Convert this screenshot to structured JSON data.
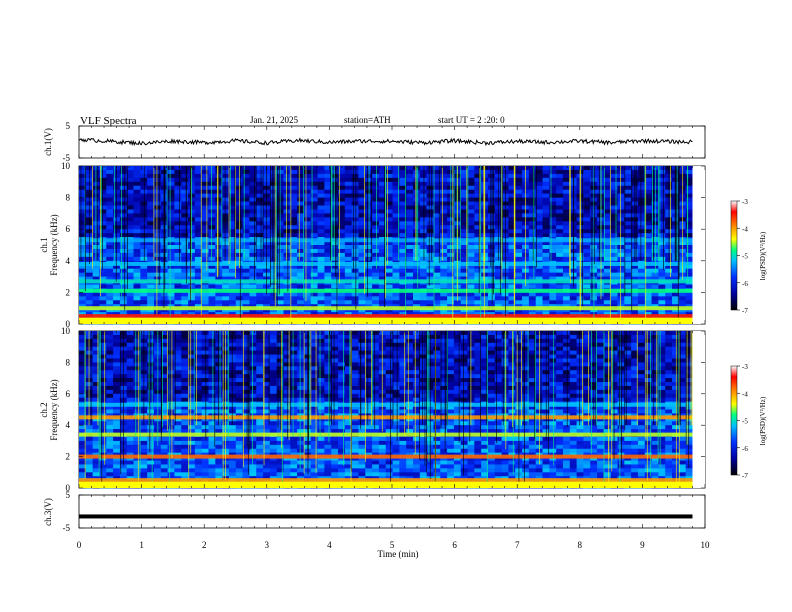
{
  "header": {
    "title": "VLF  Spectra",
    "date": "Jan. 21, 2025",
    "station": "station=ATH",
    "start": "start  UT  =   2  :20: 0"
  },
  "colors": {
    "ink": "#000000",
    "colormap": [
      "#000000",
      "#0000a0",
      "#0030ff",
      "#00c0ff",
      "#00ff80",
      "#ffff00",
      "#ff8000",
      "#ff0000",
      "#ffffff"
    ]
  },
  "chart_data": [
    {
      "type": "line",
      "id": "ch1",
      "ylabel": "ch.1(V)",
      "ylim": [
        -5,
        5
      ],
      "yticks": [
        "5",
        "-5"
      ],
      "xlim": [
        0,
        10
      ],
      "description_values": {
        "x": [
          0,
          0.5,
          1,
          1.5,
          2,
          2.5,
          3,
          3.5,
          4,
          4.5,
          5,
          5.5,
          6,
          6.5,
          7,
          7.5,
          8,
          8.5,
          9,
          9.5,
          9.8
        ],
        "y": [
          0.8,
          0.2,
          -0.4,
          0.3,
          -0.2,
          0.4,
          -0.3,
          0.5,
          -0.1,
          0.3,
          0.2,
          -0.2,
          0.4,
          -0.3,
          0.2,
          -0.1,
          0.3,
          -0.2,
          0.4,
          0.1,
          0.0
        ]
      }
    },
    {
      "type": "heatmap",
      "id": "ch1-spectrogram",
      "ylabel": "ch.1\nFrequency  (kHz)",
      "ylim": [
        0,
        10
      ],
      "yticks": [
        "0",
        "2",
        "4",
        "6",
        "8",
        "10"
      ],
      "xlim": [
        0,
        9.8
      ],
      "colorbar": {
        "label": "log(PSD)(V²/Hz)",
        "range": [
          -7,
          -3
        ],
        "ticks": [
          "-3",
          "-4",
          "-5",
          "-6",
          "-7"
        ]
      },
      "bands_khz": [
        {
          "f": 0.5,
          "level": -3.5
        },
        {
          "f": 1.0,
          "level": -4.5
        },
        {
          "f": 2.1,
          "level": -4.8
        },
        {
          "f": 2.7,
          "level": -5.0
        },
        {
          "f": 3.8,
          "level": -5.2
        },
        {
          "f": 5.3,
          "level": -5.3
        }
      ]
    },
    {
      "type": "heatmap",
      "id": "ch2-spectrogram",
      "ylabel": "ch.2\nFrequency  (kHz)",
      "ylim": [
        0,
        10
      ],
      "yticks": [
        "0",
        "2",
        "4",
        "6",
        "8",
        "10"
      ],
      "xlim": [
        0,
        9.8
      ],
      "colorbar": {
        "label": "log(PSD)(V²/Hz)",
        "range": [
          -7,
          -3
        ],
        "ticks": [
          "-3",
          "-4",
          "-5",
          "-6",
          "-7"
        ]
      },
      "bands_khz": [
        {
          "f": 0.5,
          "level": -4.0
        },
        {
          "f": 2.0,
          "level": -3.8
        },
        {
          "f": 3.4,
          "level": -4.5
        },
        {
          "f": 4.5,
          "level": -4.0
        },
        {
          "f": 5.3,
          "level": -5.2
        }
      ]
    },
    {
      "type": "line",
      "id": "ch3",
      "ylabel": "ch.3(V)",
      "ylim": [
        -5,
        5
      ],
      "yticks": [
        "5",
        "-5"
      ],
      "xlim": [
        0,
        10
      ],
      "description_values": {
        "x": [
          0,
          9.8
        ],
        "y": [
          -1.5,
          -1.5
        ]
      }
    }
  ],
  "xaxis": {
    "label": "Time  (min)",
    "ticks": [
      "0",
      "1",
      "2",
      "3",
      "4",
      "5",
      "6",
      "7",
      "8",
      "9",
      "10"
    ]
  }
}
